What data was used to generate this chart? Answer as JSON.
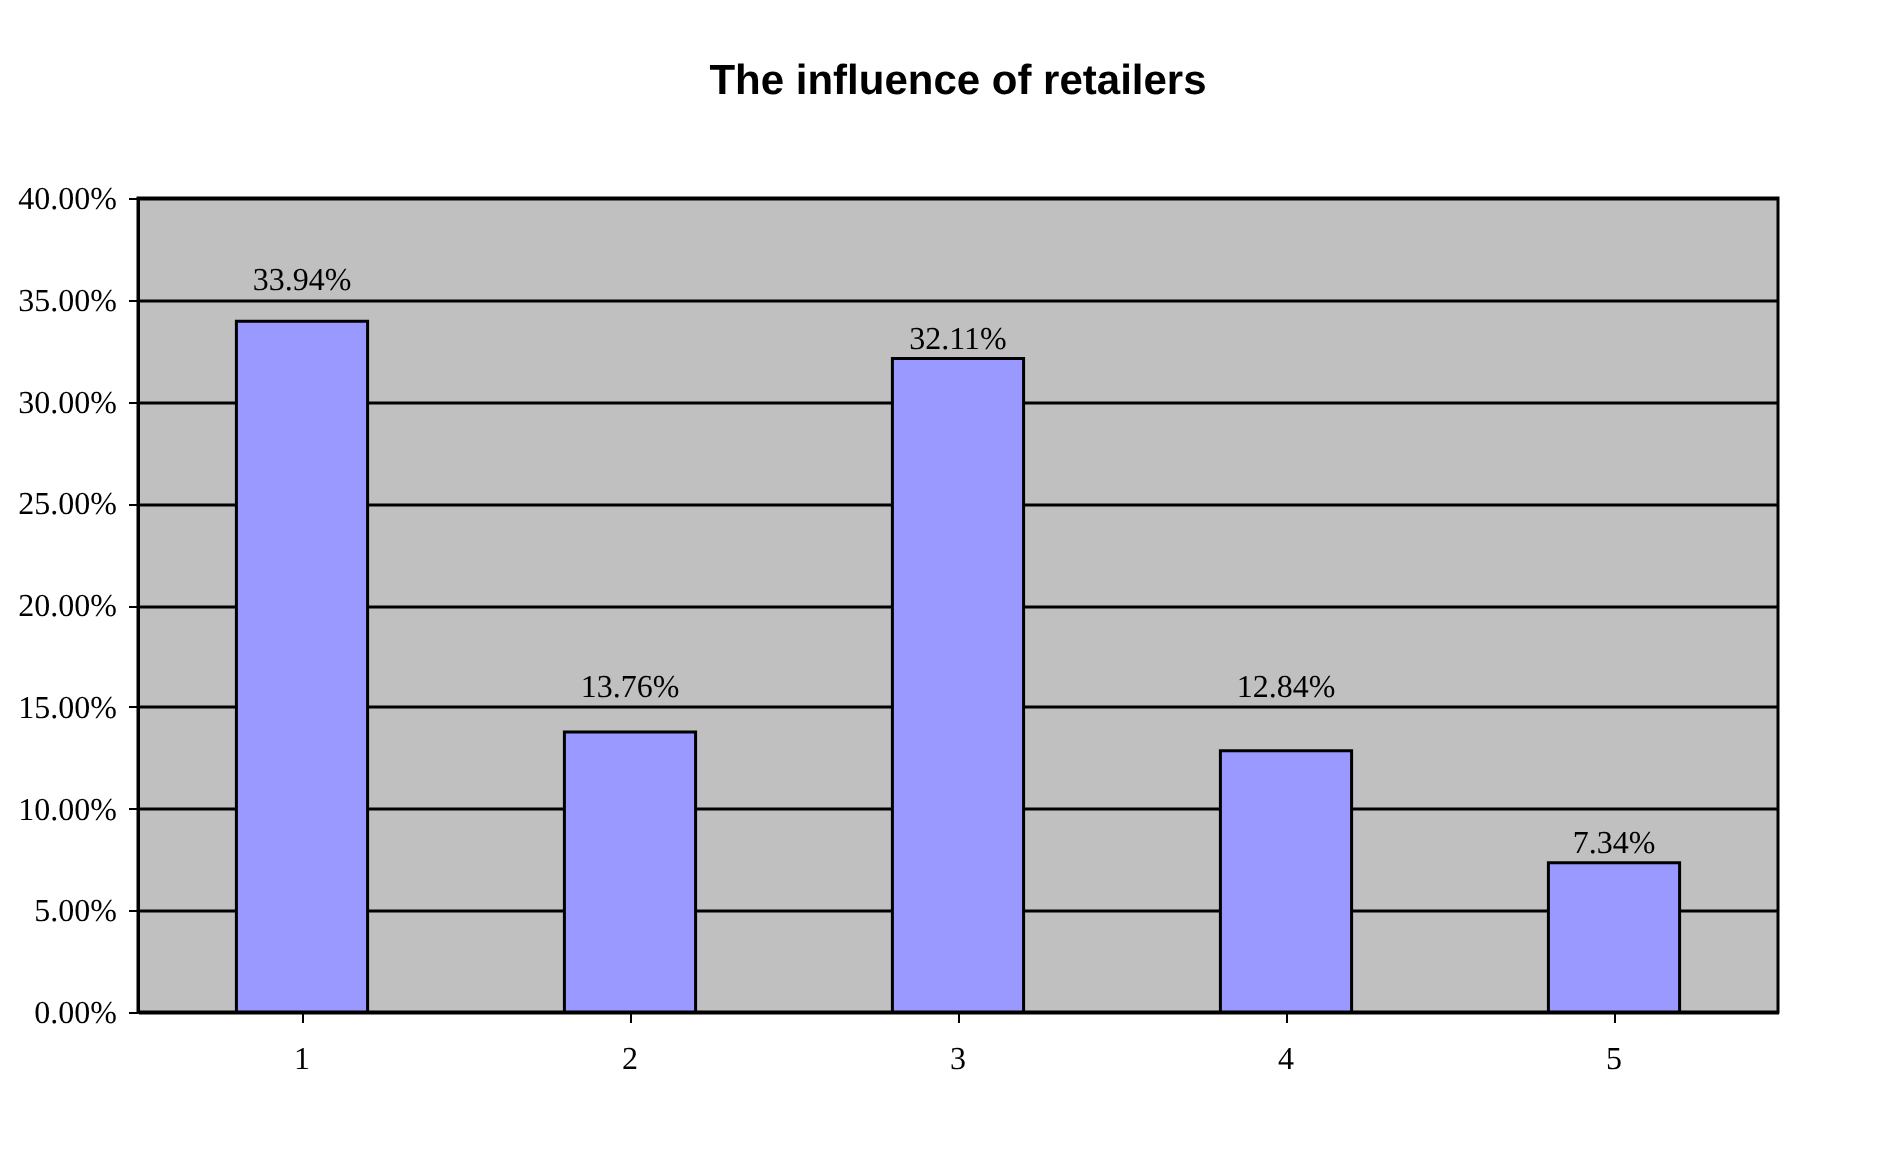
{
  "chart_data": {
    "type": "bar",
    "title": "The influence of retailers",
    "categories": [
      "1",
      "2",
      "3",
      "4",
      "5"
    ],
    "values": [
      33.94,
      13.76,
      32.11,
      12.84,
      7.34
    ],
    "value_labels": [
      "33.94%",
      "13.76%",
      "32.11%",
      "12.84%",
      "7.34%"
    ],
    "color": "#9999ff",
    "ylim": [
      0,
      40
    ],
    "yticks": [
      {
        "value": 0,
        "label": "0.00%"
      },
      {
        "value": 5,
        "label": "5.00%"
      },
      {
        "value": 10,
        "label": "10.00%"
      },
      {
        "value": 15,
        "label": "15.00%"
      },
      {
        "value": 20,
        "label": "20.00%"
      },
      {
        "value": 25,
        "label": "25.00%"
      },
      {
        "value": 30,
        "label": "30.00%"
      },
      {
        "value": 35,
        "label": "35.00%"
      },
      {
        "value": 40,
        "label": "40.00%"
      }
    ],
    "grid": "y"
  }
}
